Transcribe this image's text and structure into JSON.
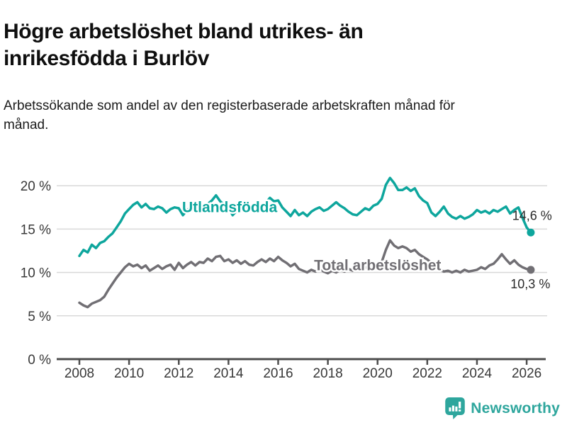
{
  "header": {
    "title": "Högre arbetslöshet bland utrikes- än inrikesfödda i Burlöv",
    "subtitle": "Arbetssökande som andel av den registerbaserade arbetskraften månad för månad."
  },
  "chart_data": {
    "type": "line",
    "title": "",
    "xlabel": "",
    "ylabel": "",
    "grid": true,
    "legend_position": "inline-labels",
    "x_start_year": 2008,
    "x_step_years": 0.1666667,
    "xlim": [
      2007.3,
      2026.8
    ],
    "ylim": [
      0,
      22
    ],
    "xticks": [
      2008,
      2010,
      2012,
      2014,
      2016,
      2018,
      2020,
      2022,
      2024,
      2026
    ],
    "yticks": [
      0,
      5,
      10,
      15,
      20
    ],
    "ytick_labels": [
      "0 %",
      "5 %",
      "10 %",
      "15 %",
      "20 %"
    ],
    "series": [
      {
        "name": "Utlandsfödda",
        "color": "#0ea69d",
        "label_text": "Utlandsfödda",
        "label_anchor": {
          "year": 2014.05,
          "value": 16.95,
          "align": "middle"
        },
        "end_label": "14,6 %",
        "end_label_anchor": {
          "year": 2025.42,
          "value": 16.05,
          "align": "start"
        },
        "end_value": 14.6,
        "values": [
          11.9,
          12.6,
          12.3,
          13.2,
          12.8,
          13.4,
          13.6,
          14.1,
          14.5,
          15.2,
          15.9,
          16.8,
          17.3,
          17.8,
          18.1,
          17.5,
          17.9,
          17.4,
          17.3,
          17.6,
          17.4,
          16.9,
          17.3,
          17.5,
          17.4,
          16.6,
          17.2,
          17.5,
          17.3,
          17.6,
          17.5,
          17.9,
          18.3,
          18.9,
          18.2,
          17.8,
          17.5,
          16.6,
          17.1,
          17.5,
          17.3,
          17.7,
          17.2,
          17.5,
          17.8,
          18.0,
          18.6,
          18.2,
          18.3,
          17.5,
          17.0,
          16.5,
          17.2,
          16.6,
          16.9,
          16.5,
          17.0,
          17.3,
          17.5,
          17.1,
          17.3,
          17.7,
          18.1,
          17.7,
          17.4,
          17.0,
          16.7,
          16.6,
          17.0,
          17.4,
          17.2,
          17.7,
          17.9,
          18.5,
          20.1,
          20.9,
          20.3,
          19.5,
          19.5,
          19.8,
          19.4,
          19.7,
          18.8,
          18.3,
          18.0,
          16.9,
          16.5,
          17.0,
          17.6,
          16.8,
          16.4,
          16.2,
          16.5,
          16.2,
          16.4,
          16.7,
          17.2,
          16.9,
          17.1,
          16.8,
          17.2,
          17.0,
          17.3,
          17.6,
          16.8,
          17.2,
          17.5,
          16.3,
          15.2,
          14.6
        ]
      },
      {
        "name": "Total arbetslöshet",
        "color": "#716f74",
        "label_text": "Total arbetslöshet",
        "label_anchor": {
          "year": 2020.0,
          "value": 10.25,
          "align": "middle"
        },
        "end_label": "10,3 %",
        "end_label_anchor": {
          "year": 2025.35,
          "value": 8.15,
          "align": "start"
        },
        "end_value": 10.3,
        "values": [
          6.5,
          6.2,
          6.0,
          6.4,
          6.6,
          6.8,
          7.2,
          8.0,
          8.7,
          9.4,
          10.0,
          10.6,
          11.0,
          10.7,
          10.9,
          10.5,
          10.8,
          10.2,
          10.5,
          10.8,
          10.4,
          10.7,
          10.9,
          10.3,
          11.1,
          10.5,
          10.9,
          11.2,
          10.8,
          11.2,
          11.1,
          11.6,
          11.3,
          11.8,
          11.9,
          11.3,
          11.5,
          11.1,
          11.4,
          11.0,
          11.3,
          10.9,
          10.8,
          11.2,
          11.5,
          11.2,
          11.6,
          11.3,
          11.8,
          11.4,
          11.1,
          10.7,
          11.0,
          10.4,
          10.2,
          10.0,
          10.3,
          10.1,
          10.4,
          10.1,
          9.9,
          10.2,
          10.0,
          10.3,
          10.1,
          10.4,
          10.2,
          10.5,
          10.3,
          10.6,
          10.4,
          10.8,
          10.6,
          11.2,
          12.6,
          13.7,
          13.1,
          12.8,
          13.0,
          12.8,
          12.4,
          12.6,
          12.1,
          11.8,
          11.5,
          11.1,
          10.6,
          10.3,
          10.1,
          10.2,
          10.0,
          10.2,
          10.0,
          10.3,
          10.1,
          10.2,
          10.3,
          10.6,
          10.4,
          10.8,
          11.0,
          11.5,
          12.1,
          11.5,
          11.0,
          11.4,
          10.9,
          10.6,
          10.4,
          10.3
        ]
      }
    ],
    "colors": {
      "axis": "#4d4d4d",
      "gridline": "#d9d9d9",
      "tick_text": "#383838",
      "value_label_text": "#2a2a2a"
    }
  },
  "footer": {
    "brand": "Newsworthy",
    "brand_color": "#2ea69d",
    "logo_icon": "bar-chart-speech-bubble-icon"
  }
}
